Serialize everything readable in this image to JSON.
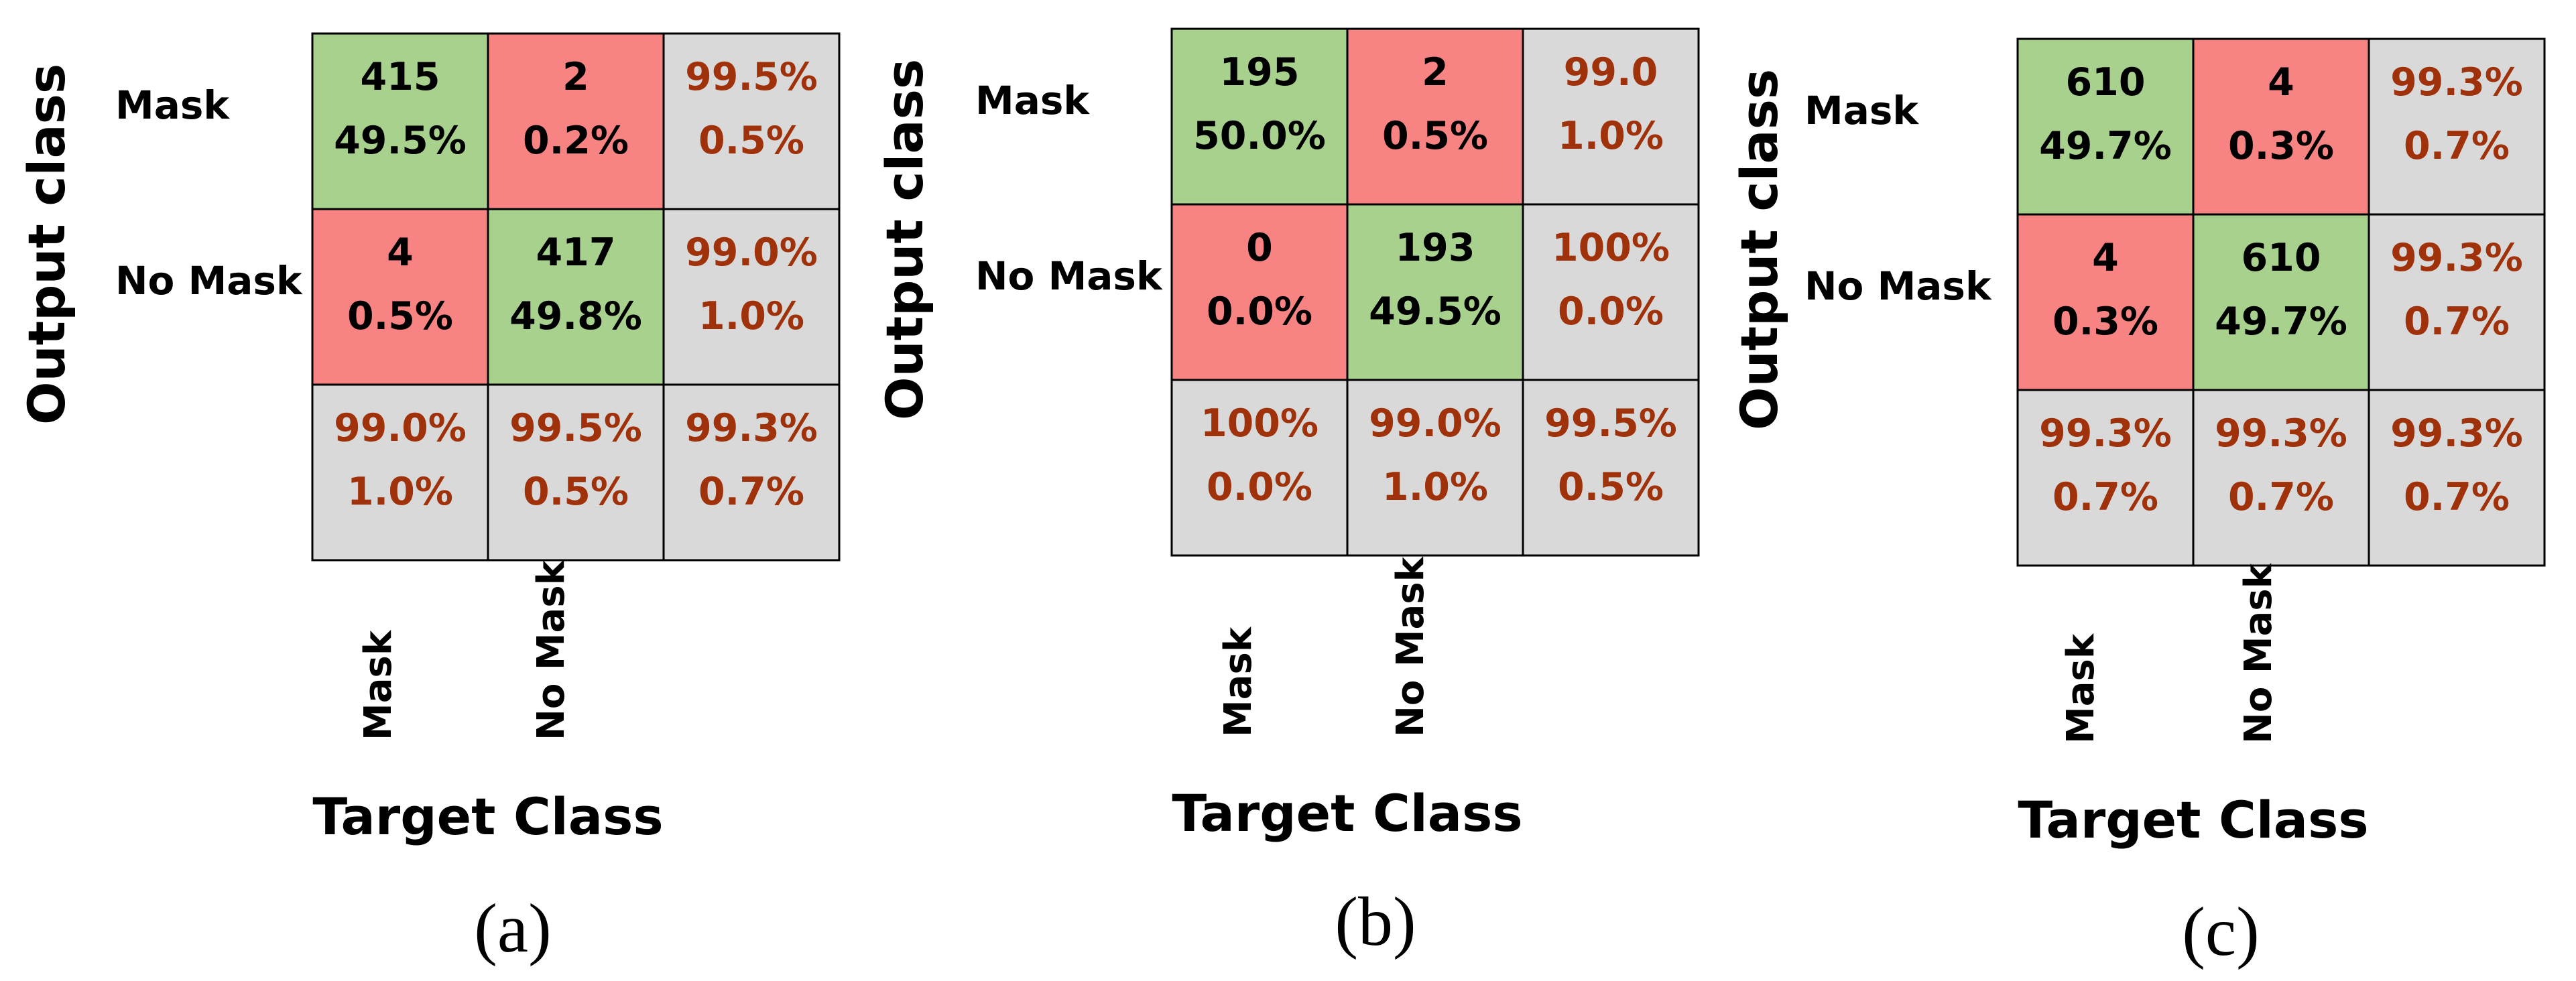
{
  "colors": {
    "correct": "#a9d18e",
    "incorrect": "#f88383",
    "summary": "#d9d9d9",
    "summary_text": "#a0320b",
    "count_text": "#000000",
    "border": "#000000"
  },
  "chart_data": [
    {
      "type": "heatmap",
      "panel_label": "(a)",
      "ylabel": "Output class",
      "xlabel": "Target Class",
      "row_labels": [
        "Mask",
        "No Mask"
      ],
      "col_labels": [
        "Mask",
        "No Mask"
      ],
      "cells": [
        [
          {
            "kind": "correct",
            "lines": [
              "415",
              "49.5%"
            ]
          },
          {
            "kind": "incorrect",
            "lines": [
              "2",
              "0.2%"
            ]
          },
          {
            "kind": "summary",
            "lines": [
              "99.5%",
              "0.5%"
            ]
          }
        ],
        [
          {
            "kind": "incorrect",
            "lines": [
              "4",
              "0.5%"
            ]
          },
          {
            "kind": "correct",
            "lines": [
              "417",
              "49.8%"
            ]
          },
          {
            "kind": "summary",
            "lines": [
              "99.0%",
              "1.0%"
            ]
          }
        ],
        [
          {
            "kind": "summary",
            "lines": [
              "99.0%",
              "1.0%"
            ]
          },
          {
            "kind": "summary",
            "lines": [
              "99.5%",
              "0.5%"
            ]
          },
          {
            "kind": "summary",
            "lines": [
              "99.3%",
              "0.7%"
            ]
          }
        ]
      ]
    },
    {
      "type": "heatmap",
      "panel_label": "(b)",
      "ylabel": "Output class",
      "xlabel": "Target Class",
      "row_labels": [
        "Mask",
        "No Mask"
      ],
      "col_labels": [
        "Mask",
        "No Mask"
      ],
      "cells": [
        [
          {
            "kind": "correct",
            "lines": [
              "195",
              "50.0%"
            ]
          },
          {
            "kind": "incorrect",
            "lines": [
              "2",
              "0.5%"
            ]
          },
          {
            "kind": "summary",
            "lines": [
              "99.0",
              "1.0%"
            ]
          }
        ],
        [
          {
            "kind": "incorrect",
            "lines": [
              "0",
              "0.0%"
            ]
          },
          {
            "kind": "correct",
            "lines": [
              "193",
              "49.5%"
            ]
          },
          {
            "kind": "summary",
            "lines": [
              "100%",
              "0.0%"
            ]
          }
        ],
        [
          {
            "kind": "summary",
            "lines": [
              "100%",
              "0.0%"
            ]
          },
          {
            "kind": "summary",
            "lines": [
              "99.0%",
              "1.0%"
            ]
          },
          {
            "kind": "summary",
            "lines": [
              "99.5%",
              "0.5%"
            ]
          }
        ]
      ]
    },
    {
      "type": "heatmap",
      "panel_label": "(c)",
      "ylabel": "Output class",
      "xlabel": "Target Class",
      "row_labels": [
        "Mask",
        "No Mask"
      ],
      "col_labels": [
        "Mask",
        "No Mask"
      ],
      "cells": [
        [
          {
            "kind": "correct",
            "lines": [
              "610",
              "49.7%"
            ]
          },
          {
            "kind": "incorrect",
            "lines": [
              "4",
              "0.3%"
            ]
          },
          {
            "kind": "summary",
            "lines": [
              "99.3%",
              "0.7%"
            ]
          }
        ],
        [
          {
            "kind": "incorrect",
            "lines": [
              "4",
              "0.3%"
            ]
          },
          {
            "kind": "correct",
            "lines": [
              "610",
              "49.7%"
            ]
          },
          {
            "kind": "summary",
            "lines": [
              "99.3%",
              "0.7%"
            ]
          }
        ],
        [
          {
            "kind": "summary",
            "lines": [
              "99.3%",
              "0.7%"
            ]
          },
          {
            "kind": "summary",
            "lines": [
              "99.3%",
              "0.7%"
            ]
          },
          {
            "kind": "summary",
            "lines": [
              "99.3%",
              "0.7%"
            ]
          }
        ]
      ]
    }
  ]
}
